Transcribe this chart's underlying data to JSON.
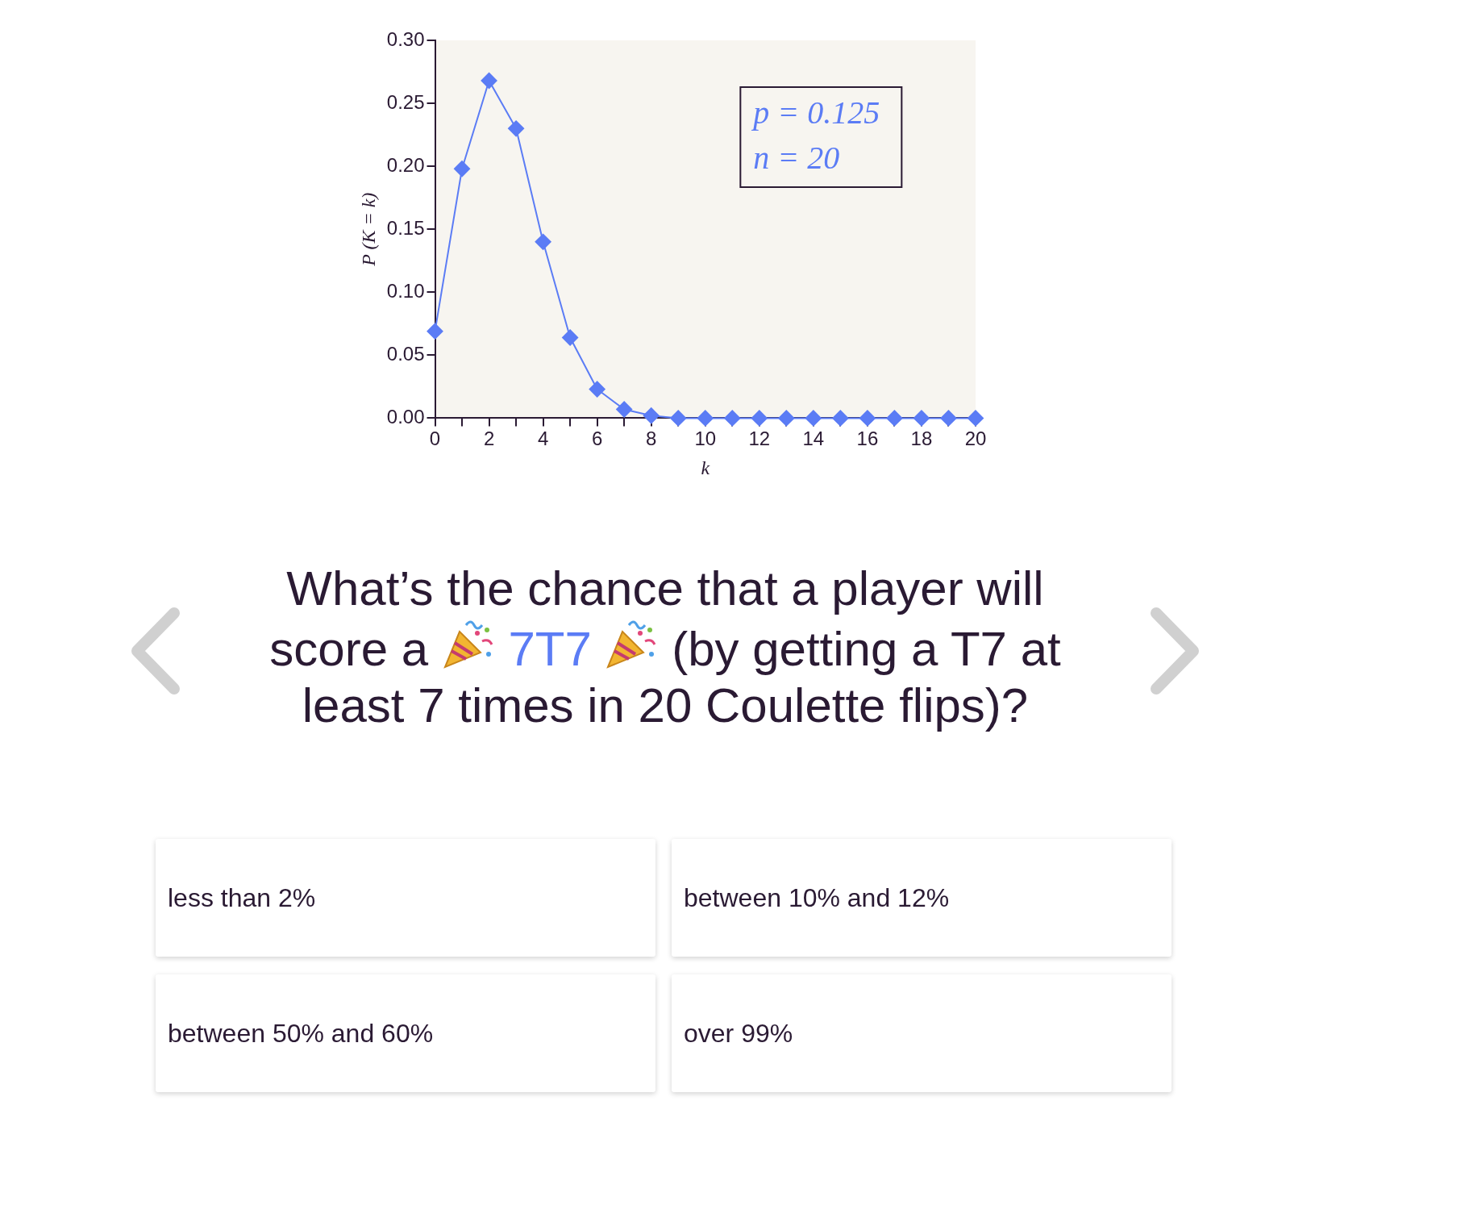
{
  "chart_data": {
    "type": "line",
    "xlabel": "k",
    "ylabel": "P (K = k)",
    "x": [
      0,
      1,
      2,
      3,
      4,
      5,
      6,
      7,
      8,
      9,
      10,
      11,
      12,
      13,
      14,
      15,
      16,
      17,
      18,
      19,
      20
    ],
    "series": [
      {
        "color": "#5b7cf5",
        "values": [
          0.069,
          0.198,
          0.268,
          0.23,
          0.14,
          0.064,
          0.023,
          0.007,
          0.002,
          0,
          0,
          0,
          0,
          0,
          0,
          0,
          0,
          0,
          0,
          0,
          0
        ]
      }
    ],
    "xlim": [
      0,
      20
    ],
    "xticks": [
      0,
      {
        "value": 1,
        "label": null
      },
      2,
      {
        "value": 3,
        "label": null
      },
      4,
      {
        "value": 5,
        "label": null
      },
      6,
      {
        "value": 7,
        "label": null
      },
      8,
      {
        "value": 9,
        "label": null
      },
      10,
      {
        "value": 11,
        "label": null
      },
      12,
      {
        "value": 13,
        "label": null
      },
      14,
      {
        "value": 15,
        "label": null
      },
      16,
      {
        "value": 17,
        "label": null
      },
      18,
      {
        "value": 19,
        "label": null
      },
      20
    ],
    "ylim": [
      0,
      0.3
    ],
    "yticks": [
      {
        "value": 0,
        "label": "0.00"
      },
      {
        "value": 0.05,
        "label": "0.05"
      },
      {
        "value": 0.1,
        "label": "0.10"
      },
      {
        "value": 0.15,
        "label": "0.15"
      },
      {
        "value": 0.2,
        "label": "0.20"
      },
      {
        "value": 0.25,
        "label": "0.25"
      },
      {
        "value": 0.3,
        "label": "0.30"
      }
    ],
    "grid": false,
    "legend": false,
    "marker": "diamond",
    "line_style": "solid",
    "annotations": [
      "p = 0.125",
      "n = 20",
      "What’s the chance that a player will score a",
      "7T7",
      "(by getting a T7 at least 7 times in 20 Coulette flips)?",
      "less than 2%",
      "between 10% and 12%",
      "between 50% and 60%",
      "over 99%"
    ]
  }
}
